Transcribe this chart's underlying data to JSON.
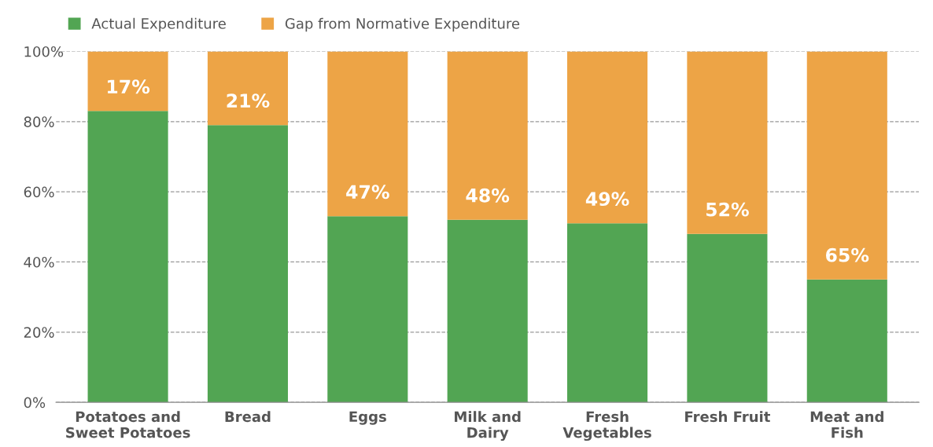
{
  "chart_data": {
    "type": "bar",
    "stacked": true,
    "categories": [
      "Potatoes and\nSweet Potatoes",
      "Bread",
      "Eggs",
      "Milk and\nDairy",
      "Fresh\nVegetables",
      "Fresh Fruit",
      "Meat and\nFish"
    ],
    "series": [
      {
        "name": "Actual Expenditure",
        "color": "#52a553",
        "values": [
          83,
          79,
          53,
          52,
          51,
          48,
          35
        ]
      },
      {
        "name": "Gap from Normative Expenditure",
        "color": "#eda446",
        "values": [
          17,
          21,
          47,
          48,
          49,
          52,
          65
        ],
        "value_labels": [
          "17%",
          "21%",
          "47%",
          "48%",
          "49%",
          "52%",
          "65%"
        ]
      }
    ],
    "ylim": [
      0,
      100
    ],
    "yticks": [
      {
        "value": 0,
        "label": "0%"
      },
      {
        "value": 20,
        "label": "20%"
      },
      {
        "value": 40,
        "label": "40%"
      },
      {
        "value": 60,
        "label": "60%"
      },
      {
        "value": 80,
        "label": "80%"
      },
      {
        "value": 100,
        "label": "100%"
      }
    ],
    "grid": "y",
    "legend": "top left"
  }
}
